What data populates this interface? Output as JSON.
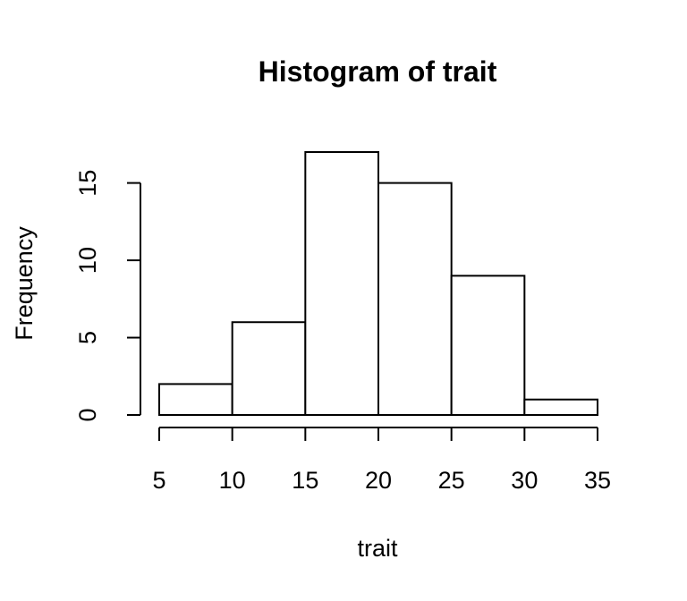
{
  "chart_data": {
    "type": "bar",
    "title": "Histogram of trait",
    "xlabel": "trait",
    "ylabel": "Frequency",
    "bins": [
      {
        "start": 5,
        "end": 10,
        "count": 2
      },
      {
        "start": 10,
        "end": 15,
        "count": 6
      },
      {
        "start": 15,
        "end": 20,
        "count": 17
      },
      {
        "start": 20,
        "end": 25,
        "count": 15
      },
      {
        "start": 25,
        "end": 30,
        "count": 9
      },
      {
        "start": 30,
        "end": 35,
        "count": 1
      }
    ],
    "x_ticks": [
      5,
      10,
      15,
      20,
      25,
      30,
      35
    ],
    "y_ticks": [
      0,
      5,
      10,
      15
    ],
    "xlim": [
      5,
      35
    ],
    "ylim": [
      0,
      17
    ],
    "grid": false,
    "legend": "none"
  }
}
